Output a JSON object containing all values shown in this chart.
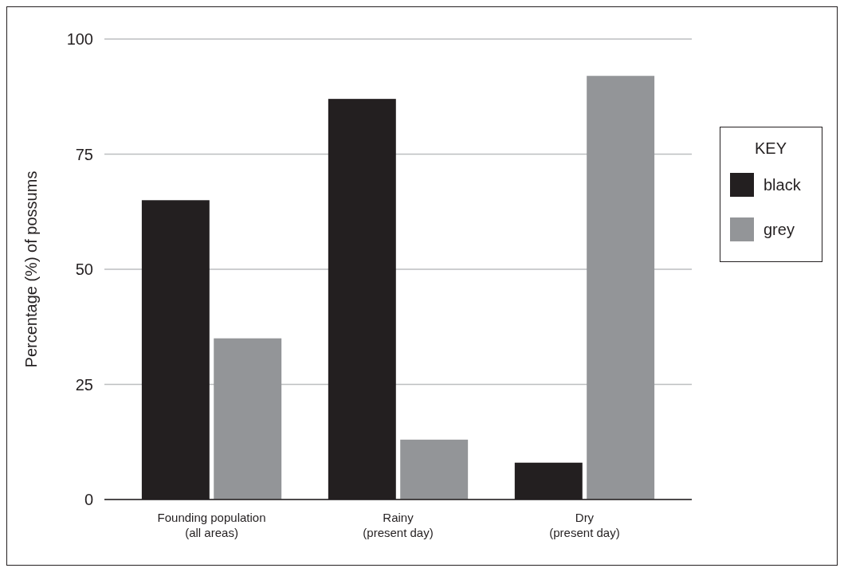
{
  "chart_data": {
    "type": "bar",
    "ylabel": "Percentage (%) of possums",
    "legend_title": "KEY",
    "categories": [
      "Founding population\n(all areas)",
      "Rainy\n(present day)",
      "Dry\n(present day)"
    ],
    "series": [
      {
        "name": "black",
        "color": "#231f20",
        "values": [
          65,
          87,
          8
        ]
      },
      {
        "name": "grey",
        "color": "#939598",
        "values": [
          35,
          13,
          92
        ]
      }
    ],
    "ylim": [
      0,
      100
    ],
    "yticks": [
      0,
      25,
      50,
      75,
      100
    ],
    "grid": "y",
    "legend": "right"
  }
}
